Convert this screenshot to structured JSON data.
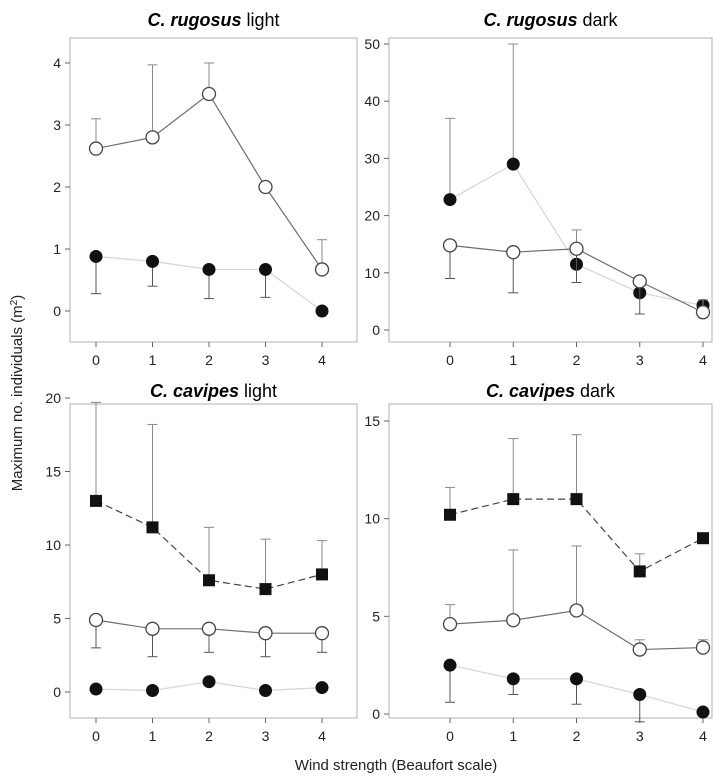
{
  "figure": {
    "xlabel": "Wind strength (Beaufort scale)",
    "ylabel_main": "Maximum no. individuals (m",
    "ylabel_sup": "2",
    "ylabel_end": ")"
  },
  "chart_data": [
    {
      "type": "line",
      "title_species": "C. rugosus",
      "title_suffix": " light",
      "x": [
        0,
        1,
        2,
        3,
        4
      ],
      "xticks": [
        "0",
        "1",
        "2",
        "3",
        "4"
      ],
      "ylim": [
        0,
        4
      ],
      "yticks": [
        0,
        1,
        2,
        3,
        4
      ],
      "series": [
        {
          "marker": "open-circle",
          "line": "solid",
          "color": "#6e6e6e",
          "values": [
            2.62,
            2.8,
            3.5,
            2.0,
            0.67
          ],
          "err_upper": [
            3.1,
            3.97,
            4.0,
            2.0,
            1.15
          ],
          "err_lower": [
            null,
            null,
            null,
            null,
            null
          ]
        },
        {
          "marker": "filled-circle",
          "line": "solid",
          "color": "#d5d5d5",
          "values": [
            0.88,
            0.8,
            0.67,
            0.67,
            0.0
          ],
          "err_upper": [
            null,
            null,
            null,
            null,
            null
          ],
          "err_lower": [
            0.28,
            0.4,
            0.2,
            0.22,
            null
          ]
        }
      ]
    },
    {
      "type": "line",
      "title_species": "C. rugosus",
      "title_suffix": " dark",
      "x": [
        0,
        1,
        2,
        3,
        4
      ],
      "xticks": [
        "0",
        "1",
        "2",
        "3",
        "4"
      ],
      "ylim": [
        0,
        50
      ],
      "yticks": [
        0,
        10,
        20,
        30,
        40,
        50
      ],
      "series": [
        {
          "marker": "open-circle",
          "line": "solid",
          "color": "#6e6e6e",
          "values": [
            14.8,
            13.6,
            14.2,
            8.5,
            3.1
          ],
          "err_upper": [
            null,
            null,
            17.5,
            null,
            5.3
          ],
          "err_lower": [
            9.0,
            6.5,
            8.3,
            2.8,
            3.1
          ]
        },
        {
          "marker": "filled-circle",
          "line": "solid",
          "color": "#d5d5d5",
          "values": [
            22.8,
            29.0,
            11.5,
            6.5,
            4.3
          ],
          "err_upper": [
            37.0,
            50.0,
            null,
            null,
            null
          ],
          "err_lower": [
            null,
            null,
            null,
            null,
            null
          ]
        }
      ]
    },
    {
      "type": "line",
      "title_species": "C. cavipes",
      "title_suffix": " light",
      "x": [
        0,
        1,
        2,
        3,
        4
      ],
      "xticks": [
        "0",
        "1",
        "2",
        "3",
        "4"
      ],
      "ylim": [
        0,
        20
      ],
      "yticks": [
        0,
        5,
        10,
        15,
        20
      ],
      "series": [
        {
          "marker": "filled-square",
          "line": "dashed",
          "color": "#444444",
          "values": [
            13.0,
            11.2,
            7.6,
            7.0,
            8.0
          ],
          "err_upper": [
            19.7,
            18.2,
            11.2,
            10.4,
            10.3
          ],
          "err_lower": [
            null,
            null,
            null,
            null,
            null
          ]
        },
        {
          "marker": "open-circle",
          "line": "solid",
          "color": "#6e6e6e",
          "values": [
            4.9,
            4.3,
            4.3,
            4.0,
            4.0
          ],
          "err_upper": [
            null,
            null,
            null,
            null,
            null
          ],
          "err_lower": [
            3.0,
            2.4,
            2.7,
            2.4,
            2.7
          ]
        },
        {
          "marker": "filled-circle",
          "line": "solid",
          "color": "#d5d5d5",
          "values": [
            0.2,
            0.1,
            0.7,
            0.1,
            0.3
          ],
          "err_upper": [
            null,
            null,
            null,
            null,
            null
          ],
          "err_lower": [
            null,
            null,
            null,
            null,
            null
          ]
        }
      ]
    },
    {
      "type": "line",
      "title_species": "C. cavipes",
      "title_suffix": " dark",
      "x": [
        0,
        1,
        2,
        3,
        4
      ],
      "xticks": [
        "0",
        "1",
        "2",
        "3",
        "4"
      ],
      "ylim": [
        -1.5,
        15
      ],
      "yticks": [
        0,
        5,
        10,
        15
      ],
      "series": [
        {
          "marker": "filled-square",
          "line": "dashed",
          "color": "#444444",
          "values": [
            10.2,
            11.0,
            11.0,
            7.3,
            9.0
          ],
          "err_upper": [
            11.6,
            14.1,
            14.3,
            8.2,
            null
          ],
          "err_lower": [
            null,
            null,
            null,
            null,
            null
          ]
        },
        {
          "marker": "open-circle",
          "line": "solid",
          "color": "#6e6e6e",
          "values": [
            4.6,
            4.8,
            5.3,
            3.3,
            3.4
          ],
          "err_upper": [
            5.6,
            8.4,
            8.6,
            3.8,
            3.8
          ],
          "err_lower": [
            null,
            null,
            null,
            null,
            null
          ]
        },
        {
          "marker": "filled-circle",
          "line": "solid",
          "color": "#d5d5d5",
          "values": [
            2.5,
            1.8,
            1.8,
            1.0,
            0.1
          ],
          "err_upper": [
            null,
            null,
            null,
            null,
            null
          ],
          "err_lower": [
            0.6,
            1.0,
            0.5,
            -0.4,
            null
          ]
        }
      ]
    }
  ]
}
